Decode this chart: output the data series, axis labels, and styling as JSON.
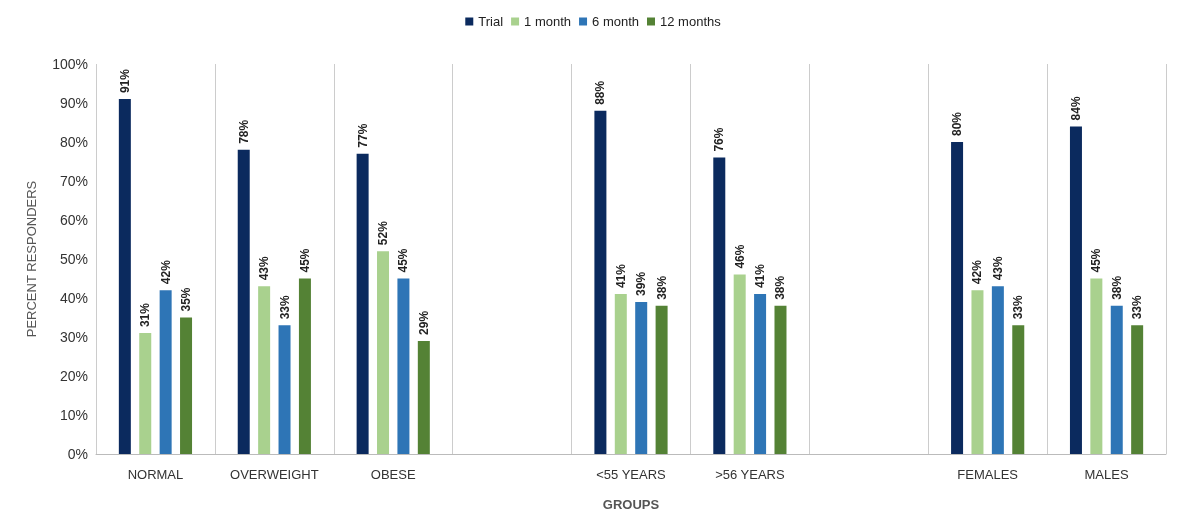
{
  "chart_data": {
    "type": "bar",
    "xlabel": "GROUPS",
    "ylabel": "PERCENT RESPONDERS",
    "categories": [
      "NORMAL",
      "OVERWEIGHT",
      "OBESE",
      null,
      "<55 YEARS",
      ">56 YEARS",
      null,
      "FEMALES",
      "MALES"
    ],
    "series": [
      {
        "name": "Trial",
        "color": "#0b2a5e",
        "values": [
          91,
          78,
          77,
          null,
          88,
          76,
          null,
          80,
          84
        ],
        "value_labels": [
          "91%",
          "78%",
          "77%",
          null,
          "88%",
          "76%",
          null,
          "80%",
          "84%"
        ]
      },
      {
        "name": "1 month",
        "color": "#a9d18e",
        "values": [
          31,
          43,
          52,
          null,
          41,
          46,
          null,
          42,
          45
        ],
        "value_labels": [
          "31%",
          "43%",
          "52%",
          null,
          "41%",
          "46%",
          null,
          "42%",
          "45%"
        ]
      },
      {
        "name": "6 month",
        "color": "#2e75b6",
        "values": [
          42,
          33,
          45,
          null,
          39,
          41,
          null,
          43,
          38
        ],
        "value_labels": [
          "42%",
          "33%",
          "45%",
          null,
          "39%",
          "41%",
          null,
          "43%",
          "38%"
        ]
      },
      {
        "name": "12 months",
        "color": "#548235",
        "values": [
          35,
          45,
          29,
          null,
          38,
          38,
          null,
          33,
          33
        ],
        "value_labels": [
          "35%",
          "45%",
          "29%",
          null,
          "38%",
          "38%",
          null,
          "33%",
          "33%"
        ]
      }
    ],
    "ylim": [
      0,
      100
    ],
    "yticks": [
      {
        "value": 0,
        "label": "0%"
      },
      {
        "value": 10,
        "label": "10%"
      },
      {
        "value": 20,
        "label": "20%"
      },
      {
        "value": 30,
        "label": "30%"
      },
      {
        "value": 40,
        "label": "40%"
      },
      {
        "value": 50,
        "label": "50%"
      },
      {
        "value": 60,
        "label": "60%"
      },
      {
        "value": 70,
        "label": "70%"
      },
      {
        "value": 80,
        "label": "80%"
      },
      {
        "value": 90,
        "label": "90%"
      },
      {
        "value": 100,
        "label": "100%"
      }
    ],
    "grid": "x",
    "legend": "top"
  }
}
